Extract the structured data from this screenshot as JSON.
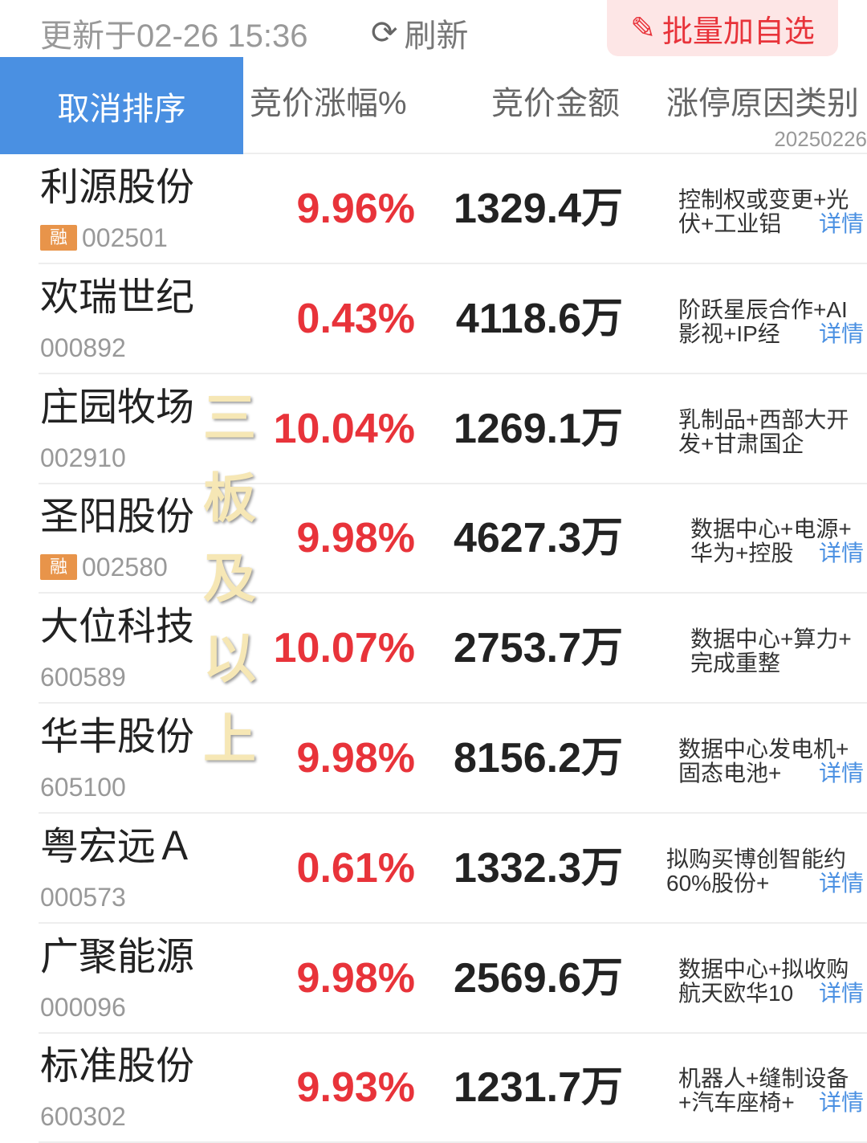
{
  "top": {
    "updated": "更新于02-26 15:36",
    "refresh": "刷新",
    "batch_add": "批量加自选"
  },
  "header": {
    "cancel_sort": "取消排序",
    "col_pct": "竞价涨幅%",
    "col_amount": "竞价金额",
    "col_reason": "涨停原因类别",
    "date": "20250226"
  },
  "rows": [
    {
      "name": "利源股份",
      "rong": "融",
      "code": "002501",
      "pct": "9.96%",
      "amount": "1329.4万",
      "reason1": "控制权或变更+光",
      "reason2": "伏+工业铝",
      "detail": "详情"
    },
    {
      "name": "欢瑞世纪",
      "rong": "",
      "code": "000892",
      "pct": "0.43%",
      "amount": "4118.6万",
      "reason1": "阶跃星辰合作+AI",
      "reason2": "影视+IP经",
      "detail": "详情"
    },
    {
      "name": "庄园牧场",
      "rong": "",
      "code": "002910",
      "pct": "10.04%",
      "amount": "1269.1万",
      "reason1": "乳制品+西部大开",
      "reason2": "发+甘肃国企",
      "detail": ""
    },
    {
      "name": "圣阳股份",
      "rong": "融",
      "code": "002580",
      "pct": "9.98%",
      "amount": "4627.3万",
      "reason1": "数据中心+电源+",
      "reason2": "华为+控股",
      "detail": "详情"
    },
    {
      "name": "大位科技",
      "rong": "",
      "code": "600589",
      "pct": "10.07%",
      "amount": "2753.7万",
      "reason1": "数据中心+算力+",
      "reason2": "完成重整",
      "detail": ""
    },
    {
      "name": "华丰股份",
      "rong": "",
      "code": "605100",
      "pct": "9.98%",
      "amount": "8156.2万",
      "reason1": "数据中心发电机+",
      "reason2": "固态电池+",
      "detail": "详情"
    },
    {
      "name": "粤宏远Ａ",
      "rong": "",
      "code": "000573",
      "pct": "0.61%",
      "amount": "1332.3万",
      "reason1": "拟购买博创智能约",
      "reason2": "60%股份+",
      "detail": "详情"
    },
    {
      "name": "广聚能源",
      "rong": "",
      "code": "000096",
      "pct": "9.98%",
      "amount": "2569.6万",
      "reason1": "数据中心+拟收购",
      "reason2": "航天欧华10",
      "detail": "详情"
    },
    {
      "name": "标准股份",
      "rong": "",
      "code": "600302",
      "pct": "9.93%",
      "amount": "1231.7万",
      "reason1": "机器人+缝制设备",
      "reason2": "+汽车座椅+",
      "detail": "详情"
    }
  ],
  "watermark": "三板及以上",
  "colors": {
    "accent": "#4a90e2",
    "up": "#e8333a",
    "rong": "#e8944a"
  }
}
